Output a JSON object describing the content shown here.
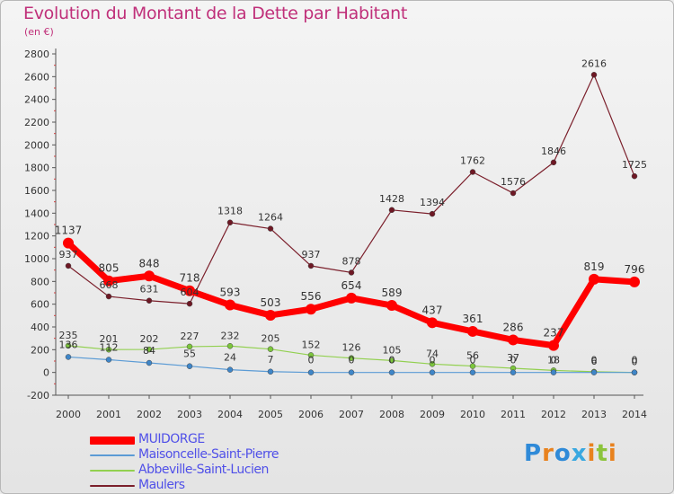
{
  "title": "Evolution du Montant de la Dette par Habitant",
  "subtitle": "(en €)",
  "brand": "Proxiti",
  "chart_data": {
    "type": "line",
    "x": [
      2000,
      2001,
      2002,
      2003,
      2004,
      2005,
      2006,
      2007,
      2008,
      2009,
      2010,
      2011,
      2012,
      2013,
      2014
    ],
    "ylim": [
      -200,
      2800
    ],
    "yticks": [
      -200,
      0,
      200,
      400,
      600,
      800,
      1000,
      1200,
      1400,
      1600,
      1800,
      2000,
      2200,
      2400,
      2600,
      2800
    ],
    "grid": false,
    "legend_position": "bottom-left",
    "series": [
      {
        "name": "MUIDORGE",
        "color": "#ff0000",
        "values": [
          1137,
          805,
          848,
          718,
          593,
          503,
          556,
          654,
          589,
          437,
          361,
          286,
          237,
          819,
          796
        ]
      },
      {
        "name": "Maisoncelle-Saint-Pierre",
        "color": "#5b9bd5",
        "values": [
          136,
          112,
          84,
          55,
          24,
          7,
          0,
          0,
          0,
          0,
          0,
          0,
          0,
          0,
          0
        ]
      },
      {
        "name": "Abbeville-Saint-Lucien",
        "color": "#92d050",
        "values": [
          235,
          201,
          202,
          227,
          232,
          205,
          152,
          126,
          105,
          74,
          56,
          37,
          18,
          6,
          0
        ]
      },
      {
        "name": "Maulers",
        "color": "#7b1f2b",
        "values": [
          937,
          668,
          631,
          604,
          1318,
          1264,
          937,
          878,
          1428,
          1394,
          1762,
          1576,
          1846,
          2616,
          1725
        ]
      }
    ]
  }
}
